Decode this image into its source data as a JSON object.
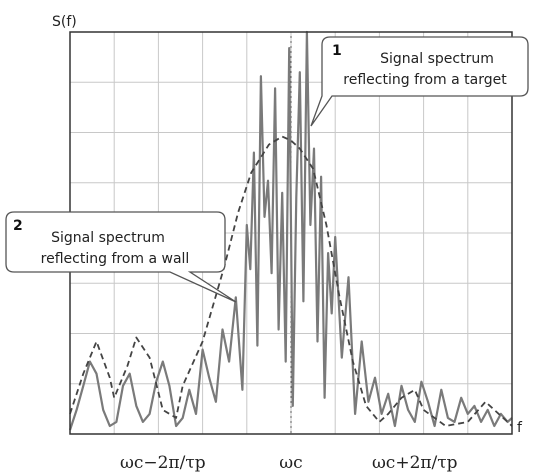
{
  "chart_data": {
    "type": "line",
    "ylabel": "S(f)",
    "xlabel": "f",
    "xlim": [
      0,
      10
    ],
    "ylim": [
      0,
      10
    ],
    "grid": true,
    "x_ticks": [
      {
        "x": 2.1,
        "label": "ωc−2π/τp"
      },
      {
        "x": 5.0,
        "label": "ωc"
      },
      {
        "x": 7.8,
        "label": "ωc+2π/τp"
      }
    ],
    "center_line": {
      "x": 5.0,
      "style": "dotted"
    },
    "series": [
      {
        "style": "solid",
        "color": "#7a7a7a",
        "x": [
          0.0,
          0.15,
          0.3,
          0.45,
          0.6,
          0.75,
          0.9,
          1.05,
          1.2,
          1.35,
          1.5,
          1.65,
          1.8,
          1.95,
          2.1,
          2.25,
          2.4,
          2.55,
          2.7,
          2.85,
          3.0,
          3.15,
          3.3,
          3.45,
          3.6,
          3.75,
          3.9,
          4.0,
          4.08,
          4.16,
          4.24,
          4.32,
          4.4,
          4.48,
          4.56,
          4.64,
          4.72,
          4.8,
          4.88,
          4.96,
          5.04,
          5.12,
          5.2,
          5.28,
          5.36,
          5.44,
          5.52,
          5.6,
          5.68,
          5.76,
          5.84,
          5.92,
          6.0,
          6.15,
          6.3,
          6.45,
          6.6,
          6.75,
          6.9,
          7.05,
          7.2,
          7.35,
          7.5,
          7.65,
          7.8,
          7.95,
          8.1,
          8.25,
          8.4,
          8.55,
          8.7,
          8.85,
          9.0,
          9.15,
          9.3,
          9.45,
          9.6,
          9.75,
          9.9,
          10.0
        ],
        "y": [
          0.1,
          0.6,
          1.2,
          1.8,
          1.5,
          0.6,
          0.2,
          0.3,
          1.2,
          1.5,
          0.7,
          0.3,
          0.5,
          1.3,
          1.8,
          1.2,
          0.2,
          0.4,
          1.1,
          0.5,
          2.1,
          1.4,
          0.8,
          2.6,
          1.8,
          3.4,
          1.1,
          5.2,
          4.1,
          7.0,
          2.2,
          8.9,
          5.4,
          6.3,
          4.0,
          8.6,
          2.6,
          6.0,
          1.8,
          9.6,
          0.7,
          5.9,
          9.0,
          3.3,
          10.0,
          5.2,
          7.1,
          2.3,
          6.4,
          0.9,
          4.5,
          3.0,
          4.9,
          1.9,
          3.9,
          0.5,
          2.3,
          0.8,
          1.4,
          0.5,
          1.0,
          0.2,
          1.2,
          0.6,
          0.3,
          1.3,
          0.8,
          0.2,
          1.1,
          0.4,
          0.3,
          0.9,
          0.5,
          0.7,
          0.3,
          0.6,
          0.2,
          0.5,
          0.3,
          0.4
        ]
      },
      {
        "style": "dashed",
        "color": "#444444",
        "x": [
          0.0,
          0.3,
          0.6,
          0.9,
          1.0,
          1.3,
          1.5,
          1.8,
          2.1,
          2.4,
          2.55,
          3.0,
          3.5,
          3.8,
          4.1,
          4.5,
          4.8,
          5.0,
          5.2,
          5.5,
          5.8,
          6.1,
          6.4,
          6.7,
          7.0,
          7.2,
          7.5,
          7.8,
          8.0,
          8.5,
          9.0,
          9.4,
          10.0
        ],
        "y": [
          0.5,
          1.5,
          2.3,
          1.4,
          0.9,
          1.7,
          2.4,
          1.9,
          0.6,
          0.4,
          1.2,
          2.3,
          4.2,
          5.5,
          6.5,
          7.2,
          7.4,
          7.3,
          7.1,
          6.6,
          5.2,
          3.4,
          1.8,
          0.7,
          0.3,
          0.5,
          0.9,
          1.1,
          0.6,
          0.2,
          0.3,
          0.8,
          0.2
        ]
      }
    ],
    "annotations": [
      {
        "number": "1",
        "lines": [
          "Signal spectrum",
          "reflecting from a target"
        ]
      },
      {
        "number": "2",
        "lines": [
          "Signal spectrum",
          "reflecting from a wall"
        ]
      }
    ]
  }
}
